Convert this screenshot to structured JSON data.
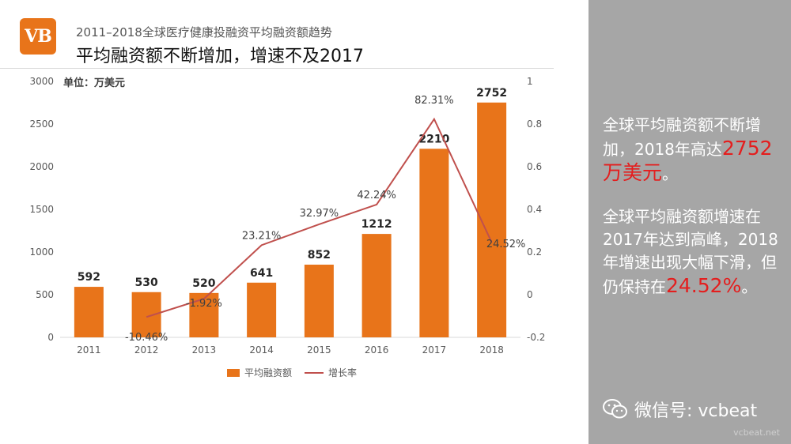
{
  "header": {
    "logo_text": "VB",
    "subtitle": "2011–2018全球医疗健康投融资平均融资额趋势",
    "title": "平均融资额不断增加，增速不及2017"
  },
  "colors": {
    "bar": "#e8741a",
    "line": "#c0504d",
    "highlight": "#e41e1e",
    "sidebar": "#a6a6a6"
  },
  "chart_data": {
    "type": "bar",
    "unit_label": "单位：万美元",
    "categories": [
      "2011",
      "2012",
      "2013",
      "2014",
      "2015",
      "2016",
      "2017",
      "2018"
    ],
    "series": [
      {
        "name": "平均融资额",
        "type": "bar",
        "axis": "left",
        "values": [
          592,
          530,
          520,
          641,
          852,
          1212,
          2210,
          2752
        ],
        "labels": [
          "592",
          "530",
          "520",
          "641",
          "852",
          "1212",
          "2210",
          "2752"
        ]
      },
      {
        "name": "增长率",
        "type": "line",
        "axis": "right",
        "values": [
          null,
          -0.1046,
          -0.0192,
          0.2321,
          0.3297,
          0.4224,
          0.8231,
          0.2452
        ],
        "labels": [
          "",
          "-10.46%",
          "-1.92%",
          "23.21%",
          "32.97%",
          "42.24%",
          "82.31%",
          "24.52%"
        ]
      }
    ],
    "y_left": {
      "min": 0,
      "max": 3000,
      "ticks": [
        "0",
        "500",
        "1000",
        "1500",
        "2000",
        "2500",
        "3000"
      ]
    },
    "y_right": {
      "min": -0.2,
      "max": 1,
      "ticks": [
        "-0.2",
        "0",
        "0.2",
        "0.4",
        "0.6",
        "0.8",
        "1"
      ]
    },
    "grid": false,
    "legend": "bottom-center"
  },
  "sidebar": {
    "p1_text": "全球平均融资额不断增加，2018年高达",
    "p1_highlight": "2752万美元",
    "p1_end": "。",
    "p2_text": "全球平均融资额增速在2017年达到高峰，2018年增速出现大幅下滑，但仍保持在",
    "p2_highlight": "24.52%",
    "p2_end": "。"
  },
  "footer": {
    "wechat_label": "微信号: vcbeat",
    "watermark": "vcbeat.net"
  }
}
